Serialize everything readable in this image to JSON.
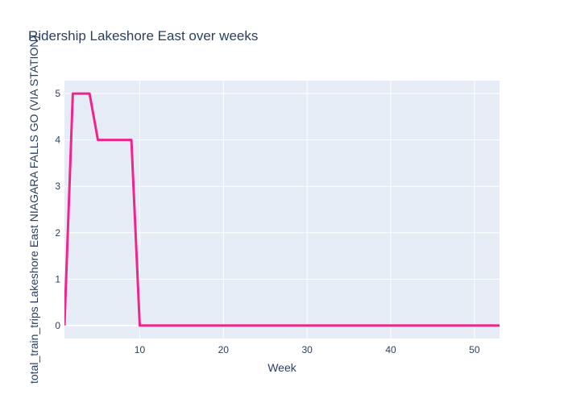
{
  "chart_data": {
    "type": "line",
    "title": "Ridership Lakeshore East over weeks",
    "xlabel": "Week",
    "ylabel": "total_train_trips Lakeshore East NIAGARA FALLS GO (VIA STATION)",
    "xlim": [
      1,
      53
    ],
    "ylim": [
      -0.28,
      5.28
    ],
    "x_ticks": [
      10,
      20,
      30,
      40,
      50
    ],
    "y_ticks": [
      0,
      1,
      2,
      3,
      4,
      5
    ],
    "grid": true,
    "series": [
      {
        "color": "#f0248a",
        "x": [
          1,
          2,
          3,
          4,
          5,
          6,
          7,
          8,
          9,
          10,
          11,
          12,
          13,
          14,
          15,
          16,
          17,
          18,
          19,
          20,
          21,
          22,
          23,
          24,
          25,
          26,
          27,
          28,
          29,
          30,
          31,
          32,
          33,
          34,
          35,
          36,
          37,
          38,
          39,
          40,
          41,
          42,
          43,
          44,
          45,
          46,
          47,
          48,
          49,
          50,
          51,
          52,
          53
        ],
        "y": [
          0,
          5,
          5,
          5,
          4,
          4,
          4,
          4,
          4,
          0,
          0,
          0,
          0,
          0,
          0,
          0,
          0,
          0,
          0,
          0,
          0,
          0,
          0,
          0,
          0,
          0,
          0,
          0,
          0,
          0,
          0,
          0,
          0,
          0,
          0,
          0,
          0,
          0,
          0,
          0,
          0,
          0,
          0,
          0,
          0,
          0,
          0,
          0,
          0,
          0,
          0,
          0,
          0
        ]
      }
    ]
  },
  "colors": {
    "plot_bg": "#e5ecf6",
    "grid": "#ffffff",
    "text": "#2a3f5f",
    "line": "#f0248a"
  }
}
